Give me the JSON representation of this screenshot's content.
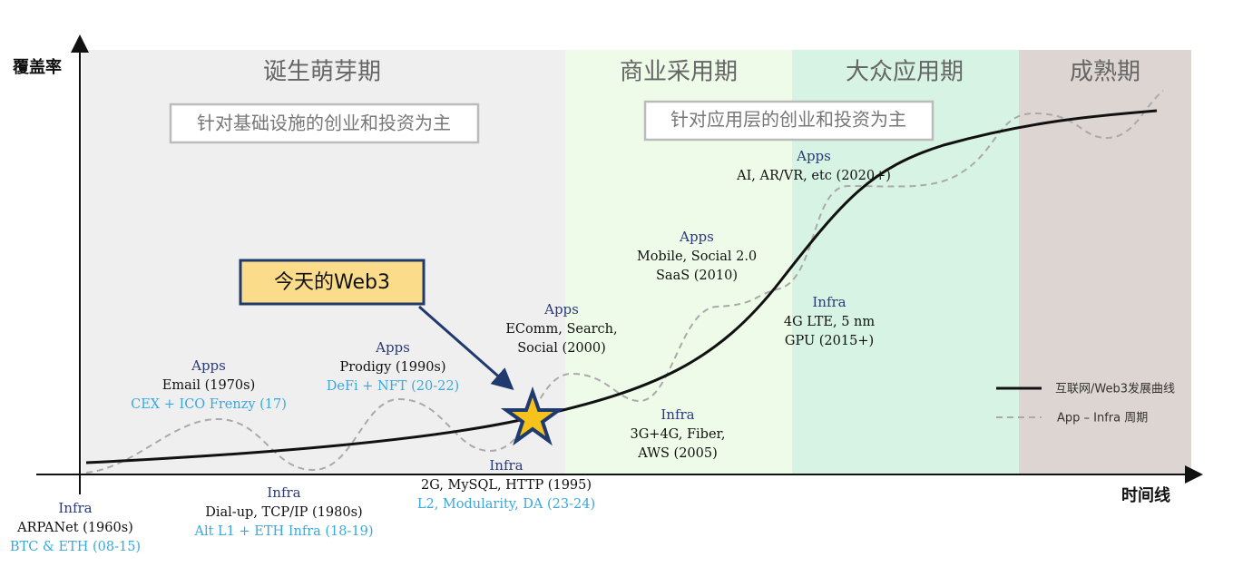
{
  "axes": {
    "y_label": "覆盖率",
    "x_label": "时间线"
  },
  "phases": [
    {
      "title": "诞生萌芽期"
    },
    {
      "title": "商业采用期"
    },
    {
      "title": "大众应用期"
    },
    {
      "title": "成熟期"
    }
  ],
  "focus_boxes": [
    "针对基础设施的创业和投资为主",
    "针对应用层的创业和投资为主"
  ],
  "callout": "今天的Web3",
  "milestones": [
    {
      "label": "Infra",
      "lines": [
        "ARPANet (1960s)"
      ],
      "crypto": "BTC & ETH (08-15)"
    },
    {
      "label": "Apps",
      "lines": [
        "Email (1970s)"
      ],
      "crypto": "CEX + ICO Frenzy (17)"
    },
    {
      "label": "Infra",
      "lines": [
        "Dial-up, TCP/IP (1980s)"
      ],
      "crypto": "Alt L1 + ETH Infra (18-19)"
    },
    {
      "label": "Apps",
      "lines": [
        "Prodigy (1990s)"
      ],
      "crypto": "DeFi + NFT (20-22)"
    },
    {
      "label": "Infra",
      "lines": [
        "2G, MySQL, HTTP (1995)"
      ],
      "crypto": "L2, Modularity, DA (23-24)"
    },
    {
      "label": "Apps",
      "lines": [
        "EComm, Search,",
        "Social (2000)"
      ]
    },
    {
      "label": "Infra",
      "lines": [
        "3G+4G, Fiber,",
        "AWS (2005)"
      ]
    },
    {
      "label": "Apps",
      "lines": [
        "Mobile, Social 2.0",
        "SaaS (2010)"
      ]
    },
    {
      "label": "Infra",
      "lines": [
        "4G LTE, 5 nm",
        "GPU (2015+)"
      ]
    },
    {
      "label": "Apps",
      "lines": [
        "AI, AR/VR, etc (2020+)"
      ]
    }
  ],
  "legend": [
    "互联网/Web3发展曲线",
    "App – Infra 周期"
  ]
}
